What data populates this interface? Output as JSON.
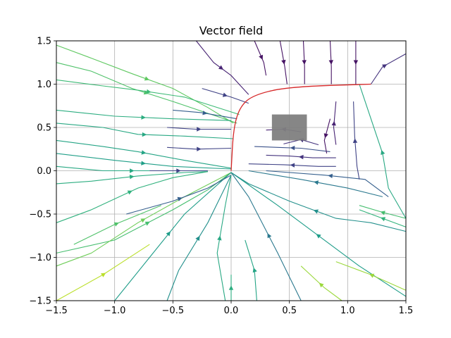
{
  "chart_data": {
    "type": "streamplot",
    "title": "Vector field",
    "xlabel": "",
    "ylabel": "",
    "xlim": [
      -1.5,
      1.5
    ],
    "ylim": [
      -1.5,
      1.5
    ],
    "xticks": [
      -1.5,
      -1.0,
      -0.5,
      0.0,
      0.5,
      1.0,
      1.5
    ],
    "yticks": [
      -1.5,
      -1.0,
      -0.5,
      0.0,
      0.5,
      1.0,
      1.5
    ],
    "xtick_labels": [
      "−1.5",
      "−1.0",
      "−0.5",
      "0.0",
      "0.5",
      "1.0",
      "1.5"
    ],
    "ytick_labels": [
      "−1.5",
      "−1.0",
      "−0.5",
      "0.0",
      "0.5",
      "1.0",
      "1.5"
    ],
    "grid": true,
    "colormap": "viridis",
    "obstacle": {
      "x": [
        0.35,
        0.65
      ],
      "y": [
        0.35,
        0.65
      ],
      "color": "#808080"
    },
    "highlight_path": {
      "color": "#d62728",
      "points": [
        [
          0.0,
          0.0
        ],
        [
          0.02,
          0.5
        ],
        [
          0.08,
          0.75
        ],
        [
          0.2,
          0.88
        ],
        [
          0.5,
          0.97
        ],
        [
          1.2,
          1.0
        ]
      ]
    },
    "streamlines": [
      {
        "c": 0.75,
        "pts": [
          [
            -1.5,
            1.45
          ],
          [
            -1.2,
            1.3
          ],
          [
            -0.85,
            1.12
          ],
          [
            -0.5,
            0.95
          ],
          [
            -0.2,
            0.73
          ],
          [
            0.02,
            0.55
          ]
        ]
      },
      {
        "c": 0.72,
        "pts": [
          [
            -1.5,
            1.25
          ],
          [
            -1.2,
            1.15
          ],
          [
            -0.85,
            0.95
          ],
          [
            -0.5,
            0.8
          ],
          [
            0.05,
            0.55
          ]
        ]
      },
      {
        "c": 0.68,
        "pts": [
          [
            -1.5,
            1.05
          ],
          [
            -1.1,
            0.98
          ],
          [
            -0.8,
            0.93
          ],
          [
            -0.4,
            0.85
          ],
          [
            0.07,
            0.65
          ]
        ]
      },
      {
        "c": 0.62,
        "pts": [
          [
            -1.5,
            0.7
          ],
          [
            -1.0,
            0.63
          ],
          [
            -0.5,
            0.6
          ],
          [
            0.0,
            0.58
          ]
        ]
      },
      {
        "c": 0.6,
        "pts": [
          [
            -1.5,
            0.55
          ],
          [
            -1.1,
            0.5
          ],
          [
            -0.8,
            0.42
          ],
          [
            -0.4,
            0.4
          ],
          [
            0.02,
            0.37
          ]
        ]
      },
      {
        "c": 0.58,
        "pts": [
          [
            -1.5,
            0.35
          ],
          [
            -1.1,
            0.28
          ],
          [
            -0.8,
            0.22
          ],
          [
            -0.4,
            0.12
          ],
          [
            0.0,
            0.03
          ]
        ]
      },
      {
        "c": 0.56,
        "pts": [
          [
            -1.5,
            0.2
          ],
          [
            -1.0,
            0.12
          ],
          [
            -0.5,
            0.05
          ],
          [
            0.0,
            0.02
          ]
        ]
      },
      {
        "c": 0.6,
        "pts": [
          [
            -1.5,
            0.05
          ],
          [
            -1.1,
            0.0
          ],
          [
            -0.5,
            0.0
          ],
          [
            -0.2,
            0.0
          ]
        ]
      },
      {
        "c": 0.62,
        "pts": [
          [
            -1.5,
            -0.15
          ],
          [
            -1.2,
            -0.12
          ],
          [
            -0.8,
            -0.06
          ],
          [
            -0.4,
            -0.02
          ],
          [
            -0.2,
            -0.01
          ]
        ]
      },
      {
        "c": 0.64,
        "pts": [
          [
            -1.5,
            -0.6
          ],
          [
            -1.2,
            -0.45
          ],
          [
            -0.8,
            -0.2
          ],
          [
            -0.5,
            -0.08
          ],
          [
            -0.2,
            -0.01
          ]
        ]
      },
      {
        "c": 0.7,
        "pts": [
          [
            -1.5,
            -0.95
          ],
          [
            -1.0,
            -0.8
          ],
          [
            -0.5,
            -0.45
          ],
          [
            -0.2,
            -0.22
          ],
          [
            0.0,
            -0.02
          ]
        ]
      },
      {
        "c": 0.78,
        "pts": [
          [
            -1.5,
            -1.1
          ],
          [
            -1.2,
            -0.95
          ],
          [
            -0.8,
            -0.6
          ],
          [
            -0.4,
            -0.3
          ],
          [
            0.0,
            -0.02
          ]
        ]
      },
      {
        "c": 0.72,
        "pts": [
          [
            -1.35,
            -0.85
          ],
          [
            -1.0,
            -0.62
          ],
          [
            -0.6,
            -0.4
          ]
        ]
      },
      {
        "c": 0.9,
        "pts": [
          [
            -1.5,
            -1.5
          ],
          [
            -1.1,
            -1.2
          ],
          [
            -0.7,
            -0.85
          ]
        ]
      },
      {
        "c": 0.55,
        "pts": [
          [
            -1.0,
            -1.5
          ],
          [
            -0.7,
            -1.0
          ],
          [
            -0.4,
            -0.5
          ],
          [
            0.0,
            -0.02
          ]
        ]
      },
      {
        "c": 0.5,
        "pts": [
          [
            -0.55,
            -1.5
          ],
          [
            -0.45,
            -1.15
          ],
          [
            -0.2,
            -0.6
          ],
          [
            0.0,
            -0.05
          ]
        ]
      },
      {
        "c": 0.3,
        "pts": [
          [
            -0.9,
            -0.5
          ],
          [
            -0.5,
            -0.35
          ],
          [
            -0.2,
            -0.2
          ],
          [
            0.0,
            -0.05
          ]
        ]
      },
      {
        "c": 0.6,
        "pts": [
          [
            -0.05,
            -1.5
          ],
          [
            -0.12,
            -0.95
          ],
          [
            -0.05,
            -0.4
          ],
          [
            0.0,
            -0.05
          ]
        ]
      },
      {
        "c": 0.62,
        "pts": [
          [
            0.0,
            -1.5
          ],
          [
            0.0,
            -1.2
          ]
        ]
      },
      {
        "c": 0.58,
        "pts": [
          [
            0.22,
            -1.5
          ],
          [
            0.2,
            -1.15
          ],
          [
            0.12,
            -0.8
          ]
        ]
      },
      {
        "c": 0.4,
        "pts": [
          [
            0.6,
            -1.5
          ],
          [
            0.4,
            -0.95
          ],
          [
            0.15,
            -0.3
          ],
          [
            0.0,
            -0.02
          ]
        ]
      },
      {
        "c": 0.85,
        "pts": [
          [
            0.95,
            -1.5
          ],
          [
            0.8,
            -1.35
          ],
          [
            0.6,
            -1.1
          ]
        ]
      },
      {
        "c": 0.55,
        "pts": [
          [
            1.5,
            -1.45
          ],
          [
            1.1,
            -1.1
          ],
          [
            0.8,
            -0.8
          ],
          [
            0.4,
            -0.4
          ],
          [
            0.0,
            -0.02
          ]
        ]
      },
      {
        "c": 0.85,
        "pts": [
          [
            1.5,
            -1.38
          ],
          [
            1.2,
            -1.2
          ],
          [
            0.9,
            -1.05
          ]
        ]
      },
      {
        "c": 0.5,
        "pts": [
          [
            1.5,
            -0.7
          ],
          [
            1.2,
            -0.6
          ],
          [
            0.9,
            -0.55
          ],
          [
            0.5,
            -0.35
          ],
          [
            0.15,
            -0.15
          ],
          [
            0.0,
            -0.02
          ]
        ]
      },
      {
        "c": 0.65,
        "pts": [
          [
            1.5,
            -0.65
          ],
          [
            1.3,
            -0.55
          ],
          [
            1.1,
            -0.45
          ]
        ]
      },
      {
        "c": 0.7,
        "pts": [
          [
            1.5,
            -0.55
          ],
          [
            1.3,
            -0.48
          ],
          [
            1.1,
            -0.4
          ]
        ]
      },
      {
        "c": 0.4,
        "pts": [
          [
            1.3,
            -0.3
          ],
          [
            1.0,
            -0.2
          ],
          [
            0.6,
            -0.1
          ],
          [
            0.15,
            0.0
          ]
        ]
      },
      {
        "c": 0.3,
        "pts": [
          [
            1.35,
            -0.3
          ],
          [
            1.15,
            -0.1
          ],
          [
            0.8,
            -0.05
          ],
          [
            0.3,
            0.0
          ]
        ]
      },
      {
        "c": 0.6,
        "pts": [
          [
            1.5,
            -0.55
          ],
          [
            1.35,
            -0.2
          ],
          [
            1.3,
            0.2
          ],
          [
            1.2,
            0.6
          ],
          [
            1.1,
            1.0
          ]
        ]
      },
      {
        "c": 0.2,
        "pts": [
          [
            1.1,
            -0.1
          ],
          [
            1.08,
            0.05
          ],
          [
            1.06,
            0.4
          ],
          [
            1.05,
            0.8
          ]
        ]
      },
      {
        "c": 0.2,
        "pts": [
          [
            0.9,
            0.05
          ],
          [
            0.75,
            0.05
          ],
          [
            0.45,
            0.07
          ],
          [
            0.15,
            0.08
          ]
        ]
      },
      {
        "c": 0.15,
        "pts": [
          [
            0.9,
            0.15
          ],
          [
            0.7,
            0.15
          ],
          [
            0.5,
            0.17
          ],
          [
            0.3,
            0.18
          ]
        ]
      },
      {
        "c": 0.25,
        "pts": [
          [
            0.85,
            0.22
          ],
          [
            0.6,
            0.26
          ],
          [
            0.4,
            0.27
          ],
          [
            0.2,
            0.28
          ]
        ]
      },
      {
        "c": 0.15,
        "pts": [
          [
            0.75,
            0.3
          ],
          [
            0.6,
            0.36
          ],
          [
            0.45,
            0.31
          ]
        ]
      },
      {
        "c": 0.1,
        "pts": [
          [
            0.6,
            0.45
          ],
          [
            0.45,
            0.48
          ],
          [
            0.3,
            0.47
          ]
        ]
      },
      {
        "c": 0.05,
        "pts": [
          [
            0.85,
            0.6
          ],
          [
            0.8,
            0.35
          ],
          [
            0.82,
            0.2
          ]
        ]
      },
      {
        "c": 0.1,
        "pts": [
          [
            0.9,
            0.3
          ],
          [
            0.88,
            0.5
          ],
          [
            0.9,
            0.8
          ]
        ]
      },
      {
        "c": 0.2,
        "pts": [
          [
            -0.55,
            0.5
          ],
          [
            -0.3,
            0.48
          ],
          [
            0.0,
            0.48
          ]
        ]
      },
      {
        "c": 0.2,
        "pts": [
          [
            -0.55,
            0.27
          ],
          [
            -0.3,
            0.25
          ],
          [
            0.0,
            0.26
          ]
        ]
      },
      {
        "c": 0.2,
        "pts": [
          [
            -0.7,
            0.0
          ],
          [
            -0.4,
            0.0
          ],
          [
            -0.2,
            0.0
          ]
        ]
      },
      {
        "c": 0.1,
        "pts": [
          [
            -0.3,
            1.5
          ],
          [
            -0.15,
            1.25
          ],
          [
            0.0,
            1.1
          ],
          [
            0.15,
            0.88
          ]
        ]
      },
      {
        "c": 0.05,
        "pts": [
          [
            0.2,
            1.5
          ],
          [
            0.28,
            1.25
          ],
          [
            0.3,
            1.1
          ]
        ]
      },
      {
        "c": 0.05,
        "pts": [
          [
            0.42,
            1.5
          ],
          [
            0.46,
            1.2
          ],
          [
            0.48,
            1.0
          ]
        ]
      },
      {
        "c": 0.05,
        "pts": [
          [
            0.62,
            1.5
          ],
          [
            0.63,
            1.2
          ],
          [
            0.63,
            1.0
          ]
        ]
      },
      {
        "c": 0.05,
        "pts": [
          [
            0.85,
            1.5
          ],
          [
            0.86,
            1.2
          ],
          [
            0.86,
            1.0
          ]
        ]
      },
      {
        "c": 0.05,
        "pts": [
          [
            1.07,
            1.5
          ],
          [
            1.07,
            1.2
          ],
          [
            1.07,
            1.0
          ]
        ]
      },
      {
        "c": 0.15,
        "pts": [
          [
            1.2,
            1.0
          ],
          [
            1.3,
            1.2
          ],
          [
            1.5,
            1.35
          ]
        ]
      },
      {
        "c": 0.2,
        "pts": [
          [
            -0.25,
            0.95
          ],
          [
            0.0,
            0.85
          ],
          [
            0.15,
            0.78
          ]
        ]
      },
      {
        "c": 0.3,
        "pts": [
          [
            -0.5,
            0.7
          ],
          [
            -0.25,
            0.67
          ],
          [
            0.05,
            0.6
          ]
        ]
      }
    ]
  }
}
